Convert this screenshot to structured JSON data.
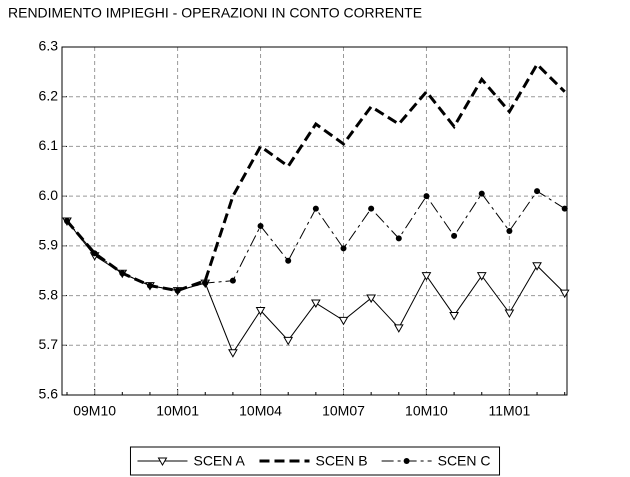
{
  "chart_data": {
    "type": "line",
    "title": "RENDIMENTO IMPIEGHI - OPERAZIONI IN CONTO CORRENTE",
    "categories": [
      null,
      "09M10",
      null,
      null,
      "10M01",
      null,
      null,
      "10M04",
      null,
      null,
      "10M07",
      null,
      null,
      "10M10",
      null,
      null,
      "11M01",
      null,
      null
    ],
    "series": [
      {
        "name": "SCEN A",
        "color": "#000000",
        "dash": "solid",
        "marker": "triangle-down",
        "values": [
          5.95,
          5.88,
          5.845,
          5.82,
          5.81,
          5.825,
          5.685,
          5.77,
          5.71,
          5.785,
          5.75,
          5.795,
          5.735,
          5.84,
          5.76,
          5.84,
          5.765,
          5.86,
          5.805
        ]
      },
      {
        "name": "SCEN B",
        "color": "#000000",
        "dash": "dashed",
        "marker": "none",
        "values": [
          5.95,
          5.885,
          5.845,
          5.82,
          5.81,
          5.83,
          6.0,
          6.1,
          6.06,
          6.145,
          6.105,
          6.18,
          6.145,
          6.21,
          6.14,
          6.235,
          6.17,
          6.265,
          6.21
        ]
      },
      {
        "name": "SCEN C",
        "color": "#000000",
        "dash": "dash-dot",
        "marker": "circle",
        "values": [
          5.95,
          5.885,
          5.845,
          5.82,
          5.81,
          5.825,
          5.83,
          5.94,
          5.87,
          5.975,
          5.895,
          5.975,
          5.915,
          6.0,
          5.92,
          6.005,
          5.93,
          6.01,
          5.975
        ]
      }
    ],
    "ylim": [
      5.6,
      6.3
    ],
    "yticks": [
      5.6,
      5.7,
      5.8,
      5.9,
      {
        "value": 6.0,
        "label": "6.0"
      },
      6.1,
      6.2,
      6.3
    ],
    "grid": true,
    "legend": "bottom"
  }
}
